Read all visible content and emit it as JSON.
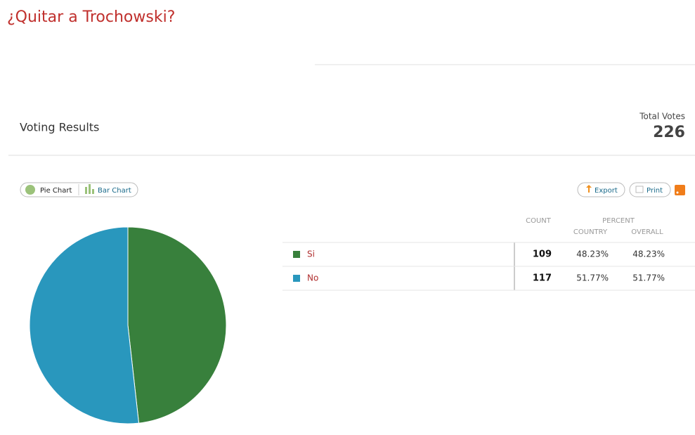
{
  "title": "¿Quitar a Trochowski?",
  "results": {
    "heading": "Voting Results",
    "total_label": "Total Votes",
    "total": 226
  },
  "toolbar": {
    "pie_button": "Pie Chart",
    "bar_button": "Bar Chart",
    "export": "Export",
    "print": "Print"
  },
  "table": {
    "count_header": "COUNT",
    "percent_header": "PERCENT",
    "country_header": "COUNTRY",
    "overall_header": "OVERALL",
    "rows": [
      {
        "country": "48.23%",
        "overall": "48.23%"
      },
      {
        "country": "51.77%",
        "overall": "51.77%"
      }
    ]
  },
  "chart_data": {
    "type": "pie",
    "categories": [
      "Si",
      "No"
    ],
    "values": [
      109,
      117
    ],
    "colors": [
      "#38803c",
      "#2997bd"
    ]
  }
}
